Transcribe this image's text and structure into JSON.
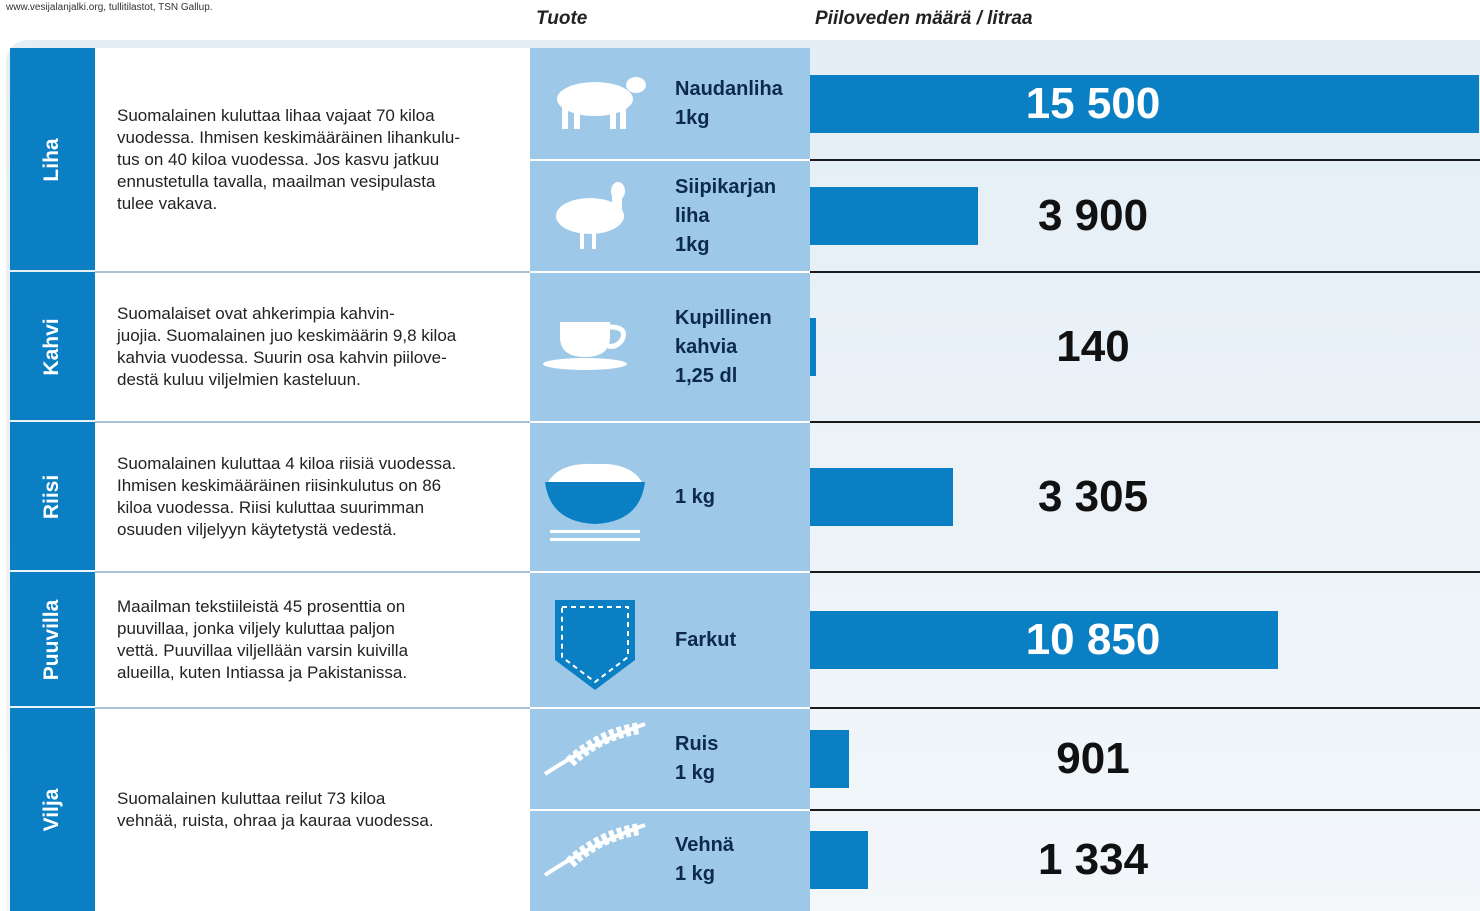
{
  "source": "www.vesijalanjalki.org, tullitilastot, TSN Gallup.",
  "headers": {
    "product": "Tuote",
    "amount": "Piiloveden määrä / litraa"
  },
  "groups": [
    {
      "label": "Liha",
      "text": [
        "Suomalainen kuluttaa lihaa vajaat 70 kiloa",
        "vuodessa. Ihmisen keskimääräinen lihankulu-",
        "tus on 40 kiloa  vuodessa. Jos kasvu jatkuu",
        "ennustetulla tavalla, maailman vesipulasta",
        "tulee vakava."
      ],
      "products": [
        {
          "name": [
            "Naudanliha",
            "1kg"
          ],
          "value": 15500,
          "value_label": "15 500"
        },
        {
          "name": [
            "Siipikarjan",
            "liha",
            "1kg"
          ],
          "value": 3900,
          "value_label": "3 900"
        }
      ]
    },
    {
      "label": "Kahvi",
      "text": [
        "Suomalaiset ovat ahkerimpia kahvin-",
        "juojia. Suomalainen juo keskimäärin 9,8 kiloa",
        "kahvia vuodessa. Suurin osa kahvin piilove-",
        "destä kuluu viljelmien kasteluun."
      ],
      "products": [
        {
          "name": [
            "Kupillinen",
            "kahvia",
            "1,25 dl"
          ],
          "value": 140
        }
      ]
    },
    {
      "label": "Riisi",
      "text": [
        "Suomalainen kuluttaa 4 kiloa riisiä vuodessa.",
        "Ihmisen keskimääräinen riisinkulutus on 86",
        "kiloa vuodessa. Riisi kuluttaa suurimman",
        "osuuden viljelyyn käytetystä vedestä."
      ],
      "products": [
        {
          "name": [
            "1 kg"
          ],
          "value": 3305,
          "value_label": "3 305"
        }
      ]
    },
    {
      "label": "Puuvilla",
      "text": [
        "Maailman tekstiileistä 45 prosenttia on",
        "puuvillaa, jonka viljely kuluttaa paljon",
        "vettä. Puuvillaa viljellään varsin kuivilla",
        "alueilla, kuten Intiassa ja Pakistanissa."
      ],
      "products": [
        {
          "name": [
            "Farkut"
          ],
          "value": 10850,
          "value_label": "10 850"
        }
      ]
    },
    {
      "label": "Vilja",
      "text": [
        "Suomalainen kuluttaa reilut 73 kiloa",
        "vehnää, ruista, ohraa ja kauraa vuodessa."
      ],
      "products": [
        {
          "name": [
            "Ruis",
            "1 kg"
          ],
          "value": 901
        },
        {
          "name": [
            "Vehnä",
            "1 kg"
          ],
          "value": 1334,
          "value_label": "1 334"
        }
      ]
    }
  ]
}
